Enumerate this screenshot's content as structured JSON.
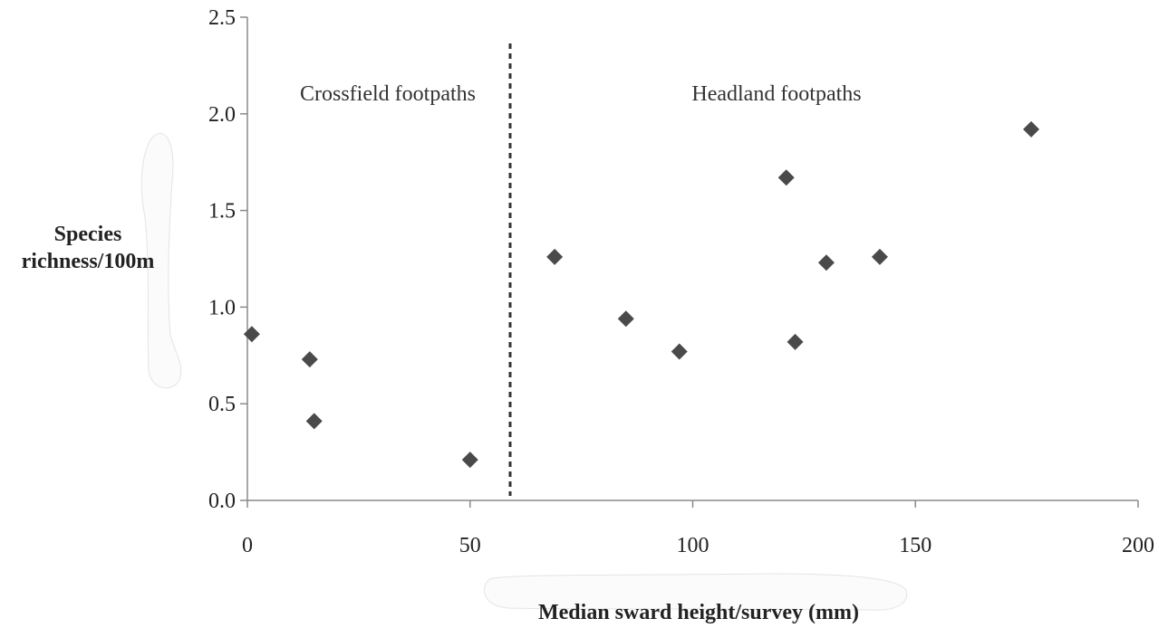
{
  "chart_data": {
    "type": "scatter",
    "title": "",
    "xlabel": "Median sward height/survey (mm)",
    "ylabel_lines": [
      "Species",
      "richness/100m"
    ],
    "xlim": [
      0,
      200
    ],
    "ylim": [
      0,
      2.5
    ],
    "x_ticks": [
      0,
      50,
      100,
      150,
      200
    ],
    "x_tick_labels": [
      "0",
      "50",
      "100",
      "150",
      "200"
    ],
    "y_ticks": [
      0,
      0.5,
      1.0,
      1.5,
      2.0,
      2.5
    ],
    "y_tick_labels": [
      "0.0",
      "0.5",
      "1.0",
      "1.5",
      "2.0",
      "2.5"
    ],
    "grid": false,
    "legend": "none",
    "marker": "diamond",
    "marker_color": "#4a4a4a",
    "divider_x": 59,
    "regions": [
      {
        "label": "Crossfield footpaths",
        "side": "left"
      },
      {
        "label": "Headland footpaths",
        "side": "right"
      }
    ],
    "points": [
      {
        "x": 1,
        "y": 0.86
      },
      {
        "x": 14,
        "y": 0.73
      },
      {
        "x": 15,
        "y": 0.41
      },
      {
        "x": 50,
        "y": 0.21
      },
      {
        "x": 69,
        "y": 1.26
      },
      {
        "x": 85,
        "y": 0.94
      },
      {
        "x": 97,
        "y": 0.77
      },
      {
        "x": 121,
        "y": 1.67
      },
      {
        "x": 123,
        "y": 0.82
      },
      {
        "x": 130,
        "y": 1.23
      },
      {
        "x": 142,
        "y": 1.26
      },
      {
        "x": 176,
        "y": 1.92
      }
    ]
  }
}
